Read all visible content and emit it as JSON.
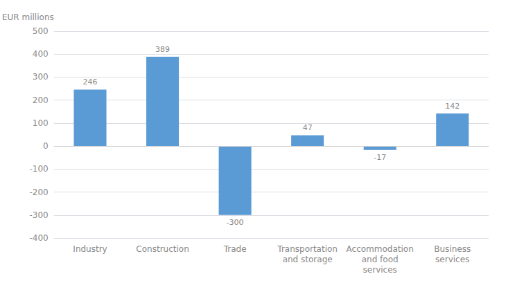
{
  "chart_data": {
    "type": "bar",
    "categories": [
      "Industry",
      "Construction",
      "Trade",
      "Transportation\nand storage",
      "Accommodation\nand food\nservices",
      "Business\nservices"
    ],
    "values": [
      246,
      389,
      -300,
      47,
      -17,
      142
    ],
    "color": "#5b9bd5",
    "ylabel": "EUR millions",
    "ylim": [
      -400,
      500
    ],
    "yticks": [
      -400,
      -300,
      -200,
      -100,
      0,
      100,
      200,
      300,
      400,
      500
    ],
    "grid": true,
    "data_labels": true
  }
}
